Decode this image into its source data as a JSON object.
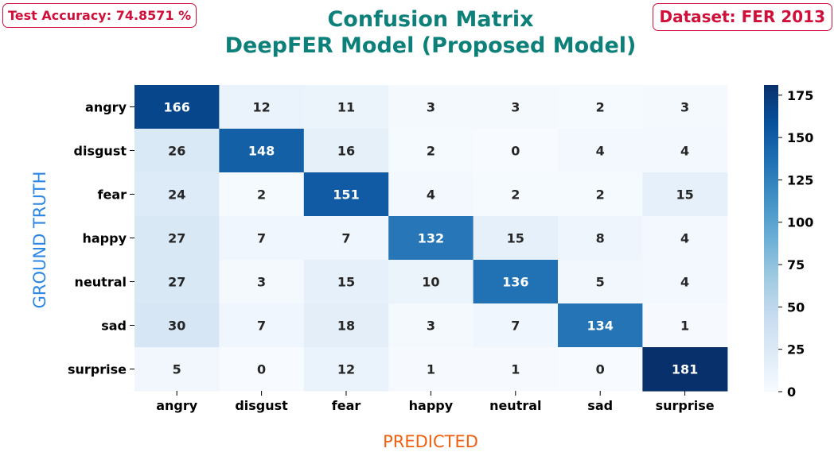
{
  "header": {
    "accuracy_badge": "Test Accuracy: 74.8571 %",
    "dataset_badge": "Dataset: FER 2013",
    "title_line1": "Confusion Matrix",
    "title_line2": "DeepFER Model (Proposed Model)"
  },
  "colors": {
    "title": "#0e807a",
    "badge": "#d0103a",
    "ylabel": "#2b86e6",
    "xlabel": "#f0600e",
    "colormap_low": "#f7fbff",
    "colormap_high": "#08306b"
  },
  "chart_data": {
    "type": "heatmap",
    "colormap": "Blues",
    "xlabel": "PREDICTED",
    "ylabel": "GROUND TRUTH",
    "x_categories": [
      "angry",
      "disgust",
      "fear",
      "happy",
      "neutral",
      "sad",
      "surprise"
    ],
    "y_categories": [
      "angry",
      "disgust",
      "fear",
      "happy",
      "neutral",
      "sad",
      "surprise"
    ],
    "values": [
      [
        166,
        12,
        11,
        3,
        3,
        2,
        3
      ],
      [
        26,
        148,
        16,
        2,
        0,
        4,
        4
      ],
      [
        24,
        2,
        151,
        4,
        2,
        2,
        15
      ],
      [
        27,
        7,
        7,
        132,
        15,
        8,
        4
      ],
      [
        27,
        3,
        15,
        10,
        136,
        5,
        4
      ],
      [
        30,
        7,
        18,
        3,
        7,
        134,
        1
      ],
      [
        5,
        0,
        12,
        1,
        1,
        0,
        181
      ]
    ],
    "colorbar_range": [
      0,
      181
    ],
    "colorbar_ticks": [
      0,
      25,
      50,
      75,
      100,
      125,
      150,
      175
    ]
  }
}
